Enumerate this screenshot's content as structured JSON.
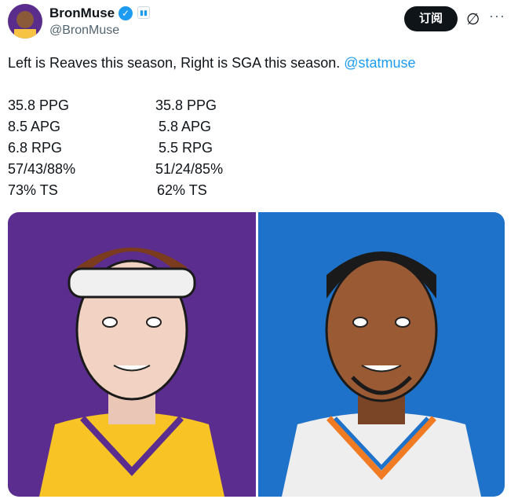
{
  "author": {
    "name": "BronMuse",
    "handle": "@BronMuse",
    "verified_icon": "verified-badge-icon",
    "affiliate_icon": "chart-icon"
  },
  "actions": {
    "subscribe_label": "订阅",
    "grok_icon": "slash-circle-icon",
    "more_label": "···"
  },
  "tweet": {
    "text": "Left is Reaves this season, Right is SGA this season. ",
    "mention": "@statmuse"
  },
  "stats": {
    "left": [
      "35.8 PPG",
      "8.5 APG",
      "6.8 RPG",
      "57/43/88%",
      "73% TS"
    ],
    "right": [
      "35.8 PPG",
      "5.8 APG",
      "5.5 RPG",
      "51/24/85%",
      "62% TS"
    ]
  },
  "media": {
    "left_bg": "#5b2d8e",
    "right_bg": "#1f72c9"
  }
}
